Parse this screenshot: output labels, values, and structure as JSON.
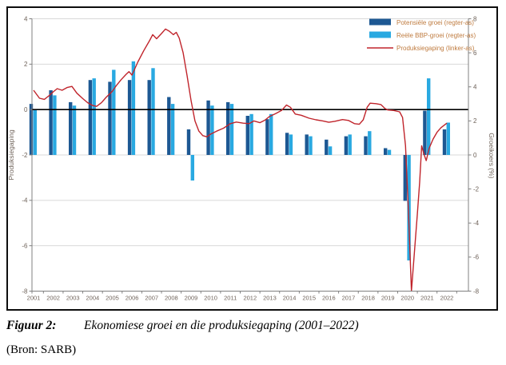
{
  "figure": {
    "caption_label": "Figuur 2:",
    "caption_title": "Ekonomiese groei en die produksiegaping (2001–2022)",
    "source": "(Bron: SARB)"
  },
  "colors": {
    "potential_bar": "#1d5893",
    "real_gdp_bar": "#29a9e1",
    "gap_line": "#c0242b",
    "zero_line": "#000000",
    "grid": "#d9d9d9",
    "axis_line": "#808080",
    "axis_text": "#6e6259",
    "legend_text": "#bf7b3f",
    "frame_border": "#0d0d0d",
    "background": "#ffffff"
  },
  "chart_data": {
    "type": "bar",
    "subtype": "combo-bar-line-dual-axis",
    "title": "",
    "grid": true,
    "legend_position": "top-right",
    "categories": [
      2001,
      2002,
      2003,
      2004,
      2005,
      2006,
      2007,
      2008,
      2009,
      2010,
      2011,
      2012,
      2013,
      2014,
      2015,
      2016,
      2017,
      2018,
      2019,
      2020,
      2021,
      2022
    ],
    "left_axis": {
      "label": "Produksiegaping",
      "min": -8,
      "max": 4,
      "ticks": [
        4,
        2,
        0,
        -2,
        -4,
        -6,
        -8
      ]
    },
    "right_axis": {
      "label": "Groeikoers (%)",
      "min": -8,
      "max": 8,
      "ticks": [
        8,
        6,
        4,
        2,
        0,
        -2,
        -4,
        -6,
        -8
      ]
    },
    "series": [
      {
        "name": "Potensiële groei (regter-as)",
        "type": "bar",
        "axis": "right",
        "color": "#1d5893",
        "values": [
          3.0,
          3.8,
          3.1,
          4.4,
          4.3,
          4.4,
          4.4,
          3.4,
          1.5,
          3.2,
          3.1,
          2.3,
          2.1,
          1.3,
          1.2,
          0.9,
          1.1,
          1.1,
          0.4,
          -2.7,
          2.6,
          1.5
        ]
      },
      {
        "name": "Reële BBP-groei (regter-as)",
        "type": "bar",
        "axis": "right",
        "color": "#29a9e1",
        "values": [
          2.7,
          3.5,
          2.9,
          4.5,
          5.0,
          5.5,
          5.1,
          3.0,
          -1.5,
          2.9,
          3.0,
          2.4,
          2.4,
          1.2,
          1.1,
          0.5,
          1.2,
          1.4,
          0.3,
          -6.2,
          4.5,
          1.9
        ]
      },
      {
        "name": "Produksiegaping (linker-as)",
        "type": "line",
        "axis": "left",
        "color": "#c0242b",
        "points": [
          [
            2001.0,
            0.85
          ],
          [
            2001.3,
            0.5
          ],
          [
            2001.55,
            0.45
          ],
          [
            2001.8,
            0.62
          ],
          [
            2002.0,
            0.78
          ],
          [
            2002.2,
            0.92
          ],
          [
            2002.45,
            0.85
          ],
          [
            2002.7,
            0.97
          ],
          [
            2002.95,
            1.02
          ],
          [
            2003.2,
            0.72
          ],
          [
            2003.5,
            0.48
          ],
          [
            2003.75,
            0.3
          ],
          [
            2004.0,
            0.18
          ],
          [
            2004.2,
            0.14
          ],
          [
            2004.45,
            0.3
          ],
          [
            2004.7,
            0.55
          ],
          [
            2005.0,
            0.8
          ],
          [
            2005.2,
            1.05
          ],
          [
            2005.45,
            1.32
          ],
          [
            2005.7,
            1.55
          ],
          [
            2005.85,
            1.67
          ],
          [
            2006.0,
            1.52
          ],
          [
            2006.3,
            2.1
          ],
          [
            2006.6,
            2.6
          ],
          [
            2006.9,
            3.05
          ],
          [
            2007.05,
            3.3
          ],
          [
            2007.25,
            3.12
          ],
          [
            2007.5,
            3.35
          ],
          [
            2007.7,
            3.55
          ],
          [
            2007.9,
            3.45
          ],
          [
            2008.1,
            3.3
          ],
          [
            2008.25,
            3.4
          ],
          [
            2008.4,
            3.15
          ],
          [
            2008.6,
            2.5
          ],
          [
            2008.8,
            1.5
          ],
          [
            2009.0,
            0.4
          ],
          [
            2009.2,
            -0.5
          ],
          [
            2009.4,
            -0.95
          ],
          [
            2009.6,
            -1.15
          ],
          [
            2009.8,
            -1.2
          ],
          [
            2010.0,
            -1.08
          ],
          [
            2010.3,
            -0.95
          ],
          [
            2010.65,
            -0.82
          ],
          [
            2011.0,
            -0.62
          ],
          [
            2011.3,
            -0.55
          ],
          [
            2011.65,
            -0.6
          ],
          [
            2011.95,
            -0.62
          ],
          [
            2012.2,
            -0.5
          ],
          [
            2012.5,
            -0.58
          ],
          [
            2012.75,
            -0.47
          ],
          [
            2013.0,
            -0.3
          ],
          [
            2013.3,
            -0.18
          ],
          [
            2013.6,
            -0.04
          ],
          [
            2013.85,
            0.2
          ],
          [
            2014.05,
            0.1
          ],
          [
            2014.3,
            -0.2
          ],
          [
            2014.6,
            -0.25
          ],
          [
            2015.0,
            -0.38
          ],
          [
            2015.35,
            -0.45
          ],
          [
            2015.7,
            -0.5
          ],
          [
            2016.0,
            -0.56
          ],
          [
            2016.3,
            -0.52
          ],
          [
            2016.7,
            -0.44
          ],
          [
            2017.0,
            -0.48
          ],
          [
            2017.3,
            -0.62
          ],
          [
            2017.55,
            -0.65
          ],
          [
            2017.75,
            -0.45
          ],
          [
            2017.95,
            0.1
          ],
          [
            2018.1,
            0.28
          ],
          [
            2018.4,
            0.26
          ],
          [
            2018.65,
            0.22
          ],
          [
            2018.85,
            0.05
          ],
          [
            2019.0,
            -0.02
          ],
          [
            2019.3,
            -0.04
          ],
          [
            2019.6,
            -0.1
          ],
          [
            2019.75,
            -0.35
          ],
          [
            2019.9,
            -1.6
          ],
          [
            2020.05,
            -4.5
          ],
          [
            2020.2,
            -8.0
          ],
          [
            2020.35,
            -6.3
          ],
          [
            2020.5,
            -4.6
          ],
          [
            2020.62,
            -3.2
          ],
          [
            2020.72,
            -1.6
          ],
          [
            2020.85,
            -2.0
          ],
          [
            2020.95,
            -2.25
          ],
          [
            2021.1,
            -1.7
          ],
          [
            2021.3,
            -1.3
          ],
          [
            2021.5,
            -1.0
          ],
          [
            2021.7,
            -0.8
          ],
          [
            2022.0,
            -0.6
          ]
        ]
      }
    ]
  }
}
